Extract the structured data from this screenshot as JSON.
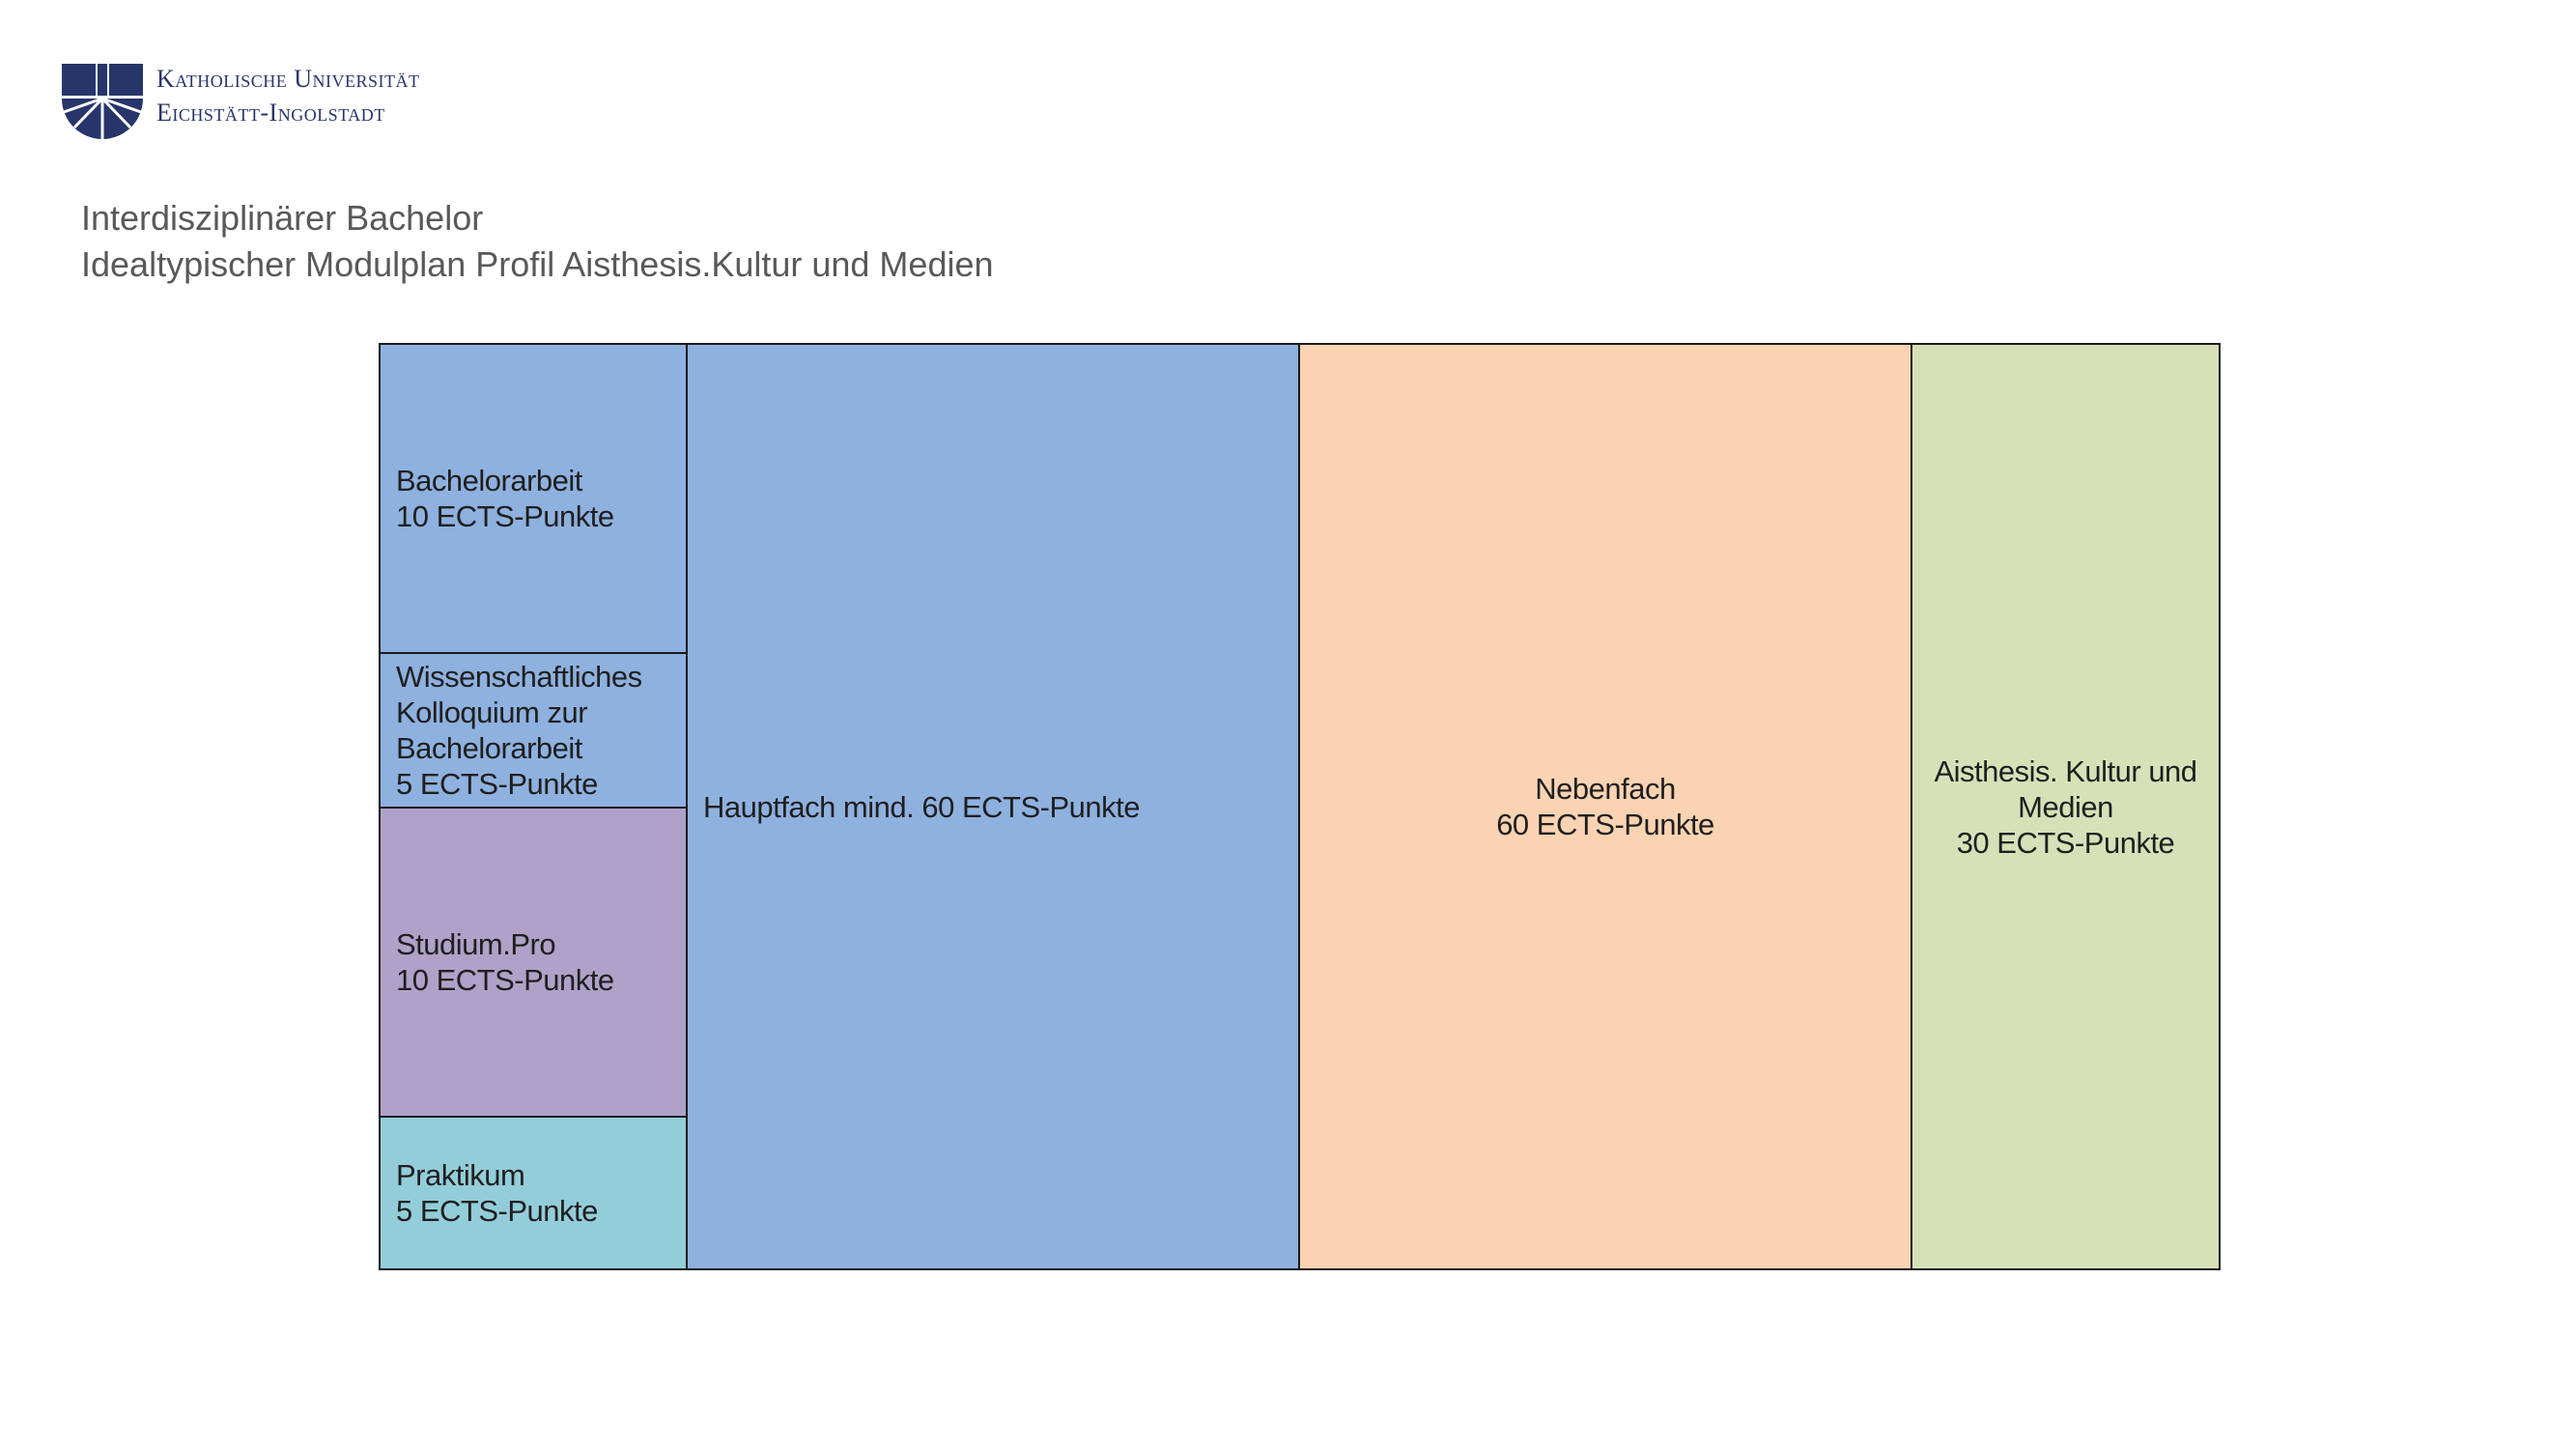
{
  "header": {
    "logo": {
      "line1": "Katholische Universität",
      "line2": "Eichstätt-Ingolstadt"
    },
    "title_line1": "Interdisziplinärer Bachelor",
    "title_line2": "Idealtypischer Modulplan Profil Aisthesis.Kultur und Medien"
  },
  "modules": {
    "bachelorarbeit": {
      "name": "Bachelorarbeit",
      "credits": "10 ECTS-Punkte",
      "color": "#8eb1df"
    },
    "kolloquium": {
      "line1": "Wissenschaftliches",
      "line2": "Kolloquium zur",
      "line3": "Bachelorarbeit",
      "credits": "5 ECTS-Punkte",
      "color": "#8eb1df"
    },
    "studium_pro": {
      "name": "Studium.Pro",
      "credits": "10 ECTS-Punkte",
      "color": "#b0a1c8"
    },
    "praktikum": {
      "name": "Praktikum",
      "credits": "5 ECTS-Punkte",
      "color": "#93cdda"
    },
    "hauptfach": {
      "label": "Hauptfach mind. 60 ECTS-Punkte",
      "color": "#8eb1df"
    },
    "nebenfach": {
      "name": "Nebenfach",
      "credits": "60 ECTS-Punkte",
      "color": "#fad3b2"
    },
    "profil": {
      "line1": "Aisthesis. Kultur und",
      "line2": "Medien",
      "credits": "30 ECTS-Punkte",
      "color": "#d7e1b8"
    }
  }
}
